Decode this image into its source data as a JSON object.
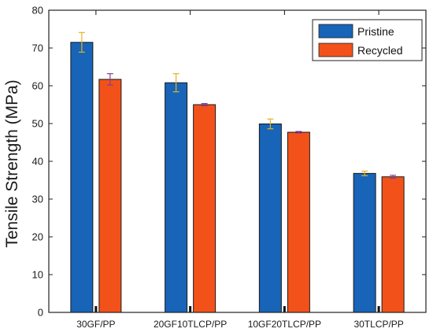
{
  "chart_data": {
    "type": "bar",
    "title": "",
    "xlabel": "",
    "ylabel": "Tensile Strength (MPa)",
    "ylim": [
      0,
      80
    ],
    "yticks": [
      "0",
      "10",
      "20",
      "30",
      "40",
      "50",
      "60",
      "70",
      "80"
    ],
    "categories": [
      "30GF/PP",
      "20GF10TLCP/PP",
      "10GF20TLCP/PP",
      "30TLCP/PP"
    ],
    "series": [
      {
        "name": "Pristine",
        "color": "#1764b8",
        "values": [
          71.5,
          60.8,
          49.9,
          36.8
        ],
        "errors": [
          2.6,
          2.4,
          1.3,
          0.6
        ],
        "error_color": "#e8b020"
      },
      {
        "name": "Recycled",
        "color": "#f2521a",
        "values": [
          61.7,
          55.0,
          47.7,
          35.9
        ],
        "errors": [
          1.5,
          0.3,
          0.2,
          0.4
        ],
        "error_color": "#8a3b9a"
      }
    ],
    "legend": {
      "placement": "top-right",
      "entries": [
        "Pristine",
        "Recycled"
      ]
    },
    "grid": false
  }
}
